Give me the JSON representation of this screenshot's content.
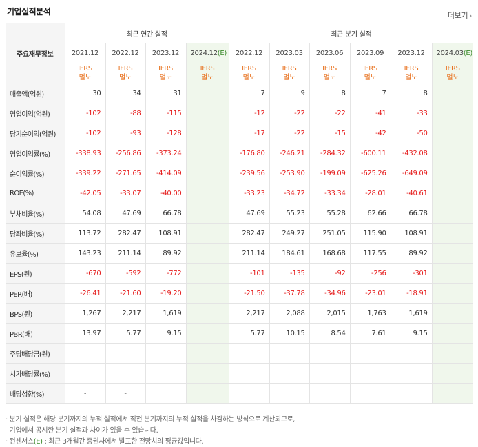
{
  "title": "기업실적분석",
  "more_label": "더보기",
  "more_icon": "chevron-right-icon",
  "row_header_label": "주요재무정보",
  "groups": {
    "annual": "최근 연간 실적",
    "quarter": "최근 분기 실적"
  },
  "periods": {
    "annual": [
      "2021.12",
      "2022.12",
      "2023.12",
      "2024.12"
    ],
    "quarter": [
      "2022.12",
      "2023.03",
      "2023.06",
      "2023.09",
      "2023.12",
      "2024.03"
    ],
    "est_mark": "(E)"
  },
  "ifrs": {
    "line1": "IFRS",
    "line2": "별도"
  },
  "rows": [
    {
      "label": "매출액(억원)",
      "values": [
        "30",
        "34",
        "31",
        "",
        "7",
        "9",
        "8",
        "7",
        "8",
        ""
      ]
    },
    {
      "label": "영업이익(억원)",
      "values": [
        "-102",
        "-88",
        "-115",
        "",
        "-12",
        "-22",
        "-22",
        "-41",
        "-33",
        ""
      ]
    },
    {
      "label": "당기순이익(억원)",
      "values": [
        "-102",
        "-93",
        "-128",
        "",
        "-17",
        "-22",
        "-15",
        "-42",
        "-50",
        ""
      ]
    },
    {
      "label": "영업이익률(%)",
      "values": [
        "-338.93",
        "-256.86",
        "-373.24",
        "",
        "-176.80",
        "-246.21",
        "-284.32",
        "-600.11",
        "-432.08",
        ""
      ]
    },
    {
      "label": "순이익률(%)",
      "values": [
        "-339.22",
        "-271.65",
        "-414.09",
        "",
        "-239.56",
        "-253.90",
        "-199.09",
        "-625.26",
        "-649.09",
        ""
      ]
    },
    {
      "label": "ROE(%)",
      "values": [
        "-42.05",
        "-33.07",
        "-40.00",
        "",
        "-33.23",
        "-34.72",
        "-33.34",
        "-28.01",
        "-40.61",
        ""
      ]
    },
    {
      "label": "부채비율(%)",
      "values": [
        "54.08",
        "47.69",
        "66.78",
        "",
        "47.69",
        "55.23",
        "55.28",
        "62.66",
        "66.78",
        ""
      ]
    },
    {
      "label": "당좌비율(%)",
      "values": [
        "113.72",
        "282.47",
        "108.91",
        "",
        "282.47",
        "249.27",
        "251.05",
        "115.90",
        "108.91",
        ""
      ]
    },
    {
      "label": "유보율(%)",
      "values": [
        "143.23",
        "211.14",
        "89.92",
        "",
        "211.14",
        "184.61",
        "168.68",
        "117.55",
        "89.92",
        ""
      ]
    },
    {
      "label": "EPS(원)",
      "values": [
        "-670",
        "-592",
        "-772",
        "",
        "-101",
        "-135",
        "-92",
        "-256",
        "-301",
        ""
      ]
    },
    {
      "label": "PER(배)",
      "values": [
        "-26.41",
        "-21.60",
        "-19.20",
        "",
        "-21.50",
        "-37.78",
        "-34.96",
        "-23.01",
        "-18.91",
        ""
      ]
    },
    {
      "label": "BPS(원)",
      "values": [
        "1,267",
        "2,217",
        "1,619",
        "",
        "2,217",
        "2,088",
        "2,015",
        "1,763",
        "1,619",
        ""
      ]
    },
    {
      "label": "PBR(배)",
      "values": [
        "13.97",
        "5.77",
        "9.15",
        "",
        "5.77",
        "10.15",
        "8.54",
        "7.61",
        "9.15",
        ""
      ]
    },
    {
      "label": "주당배당금(원)",
      "values": [
        "",
        "",
        "",
        "",
        "",
        "",
        "",
        "",
        "",
        ""
      ]
    },
    {
      "label": "시가배당률(%)",
      "values": [
        "",
        "",
        "",
        "",
        "",
        "",
        "",
        "",
        "",
        ""
      ]
    },
    {
      "label": "배당성향(%)",
      "values": [
        "-",
        "-",
        "",
        "",
        "",
        "",
        "",
        "",
        "",
        ""
      ]
    }
  ],
  "notes": {
    "line1": "· 분기 실적은 해당 분기까지의 누적 실적에서 직전 분기까지의 누적 실적을 차감하는 방식으로 계산되므로,",
    "line2": "  기업에서 공시한 분기 실적과 차이가 있을 수 있습니다.",
    "line3_prefix": "· 컨센서스",
    "line3_mark": "(E)",
    "line3_suffix": " : 최근 3개월간 증권사에서 발표한 전망치의 평균값입니다."
  },
  "colors": {
    "ifrs": "#e8711e",
    "negative": "#e51a1a",
    "estimate_bg": "#f0f7ec",
    "estimate_mark": "#3a8a2a"
  }
}
